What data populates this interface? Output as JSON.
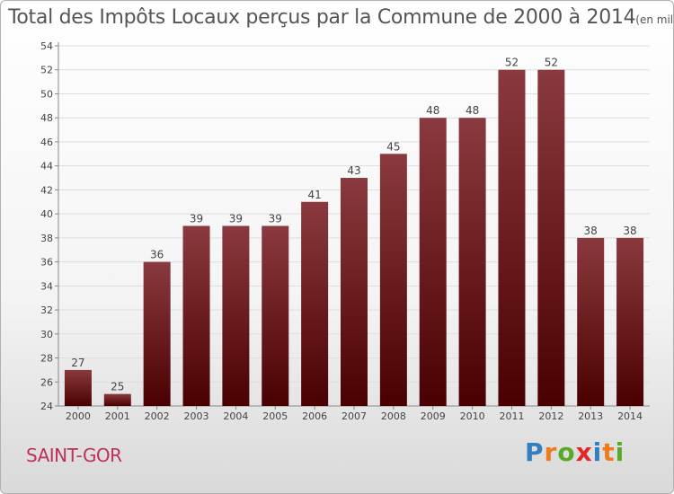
{
  "chart_data": {
    "type": "bar",
    "title": "Total des Impôts Locaux perçus par la Commune de 2000 à 2014",
    "unit": "(en milliers d'€)",
    "categories": [
      "2000",
      "2001",
      "2002",
      "2003",
      "2004",
      "2005",
      "2006",
      "2007",
      "2008",
      "2009",
      "2010",
      "2011",
      "2012",
      "2013",
      "2014"
    ],
    "values": [
      27,
      25,
      36,
      39,
      39,
      39,
      41,
      43,
      45,
      48,
      48,
      52,
      52,
      38,
      38
    ],
    "ylim": [
      24,
      54
    ],
    "yticks": [
      24,
      26,
      28,
      30,
      32,
      34,
      36,
      38,
      40,
      42,
      44,
      46,
      48,
      50,
      52,
      54
    ],
    "xlabel": "",
    "ylabel": "",
    "grid": true,
    "bar_color_top": "#8a3a3e",
    "bar_color_bottom": "#4a0000"
  },
  "commune": "SAINT-GOR",
  "logo": {
    "letters": [
      "P",
      "r",
      "o",
      "x",
      "i",
      "t",
      "i"
    ],
    "colors": [
      "#2f7fc1",
      "#f07b1c",
      "#5aaa2a",
      "#e0282a",
      "#2f7fc1",
      "#f07b1c",
      "#5aaa2a"
    ]
  },
  "colors": {
    "title": "#555555",
    "commune": "#c0305a"
  }
}
